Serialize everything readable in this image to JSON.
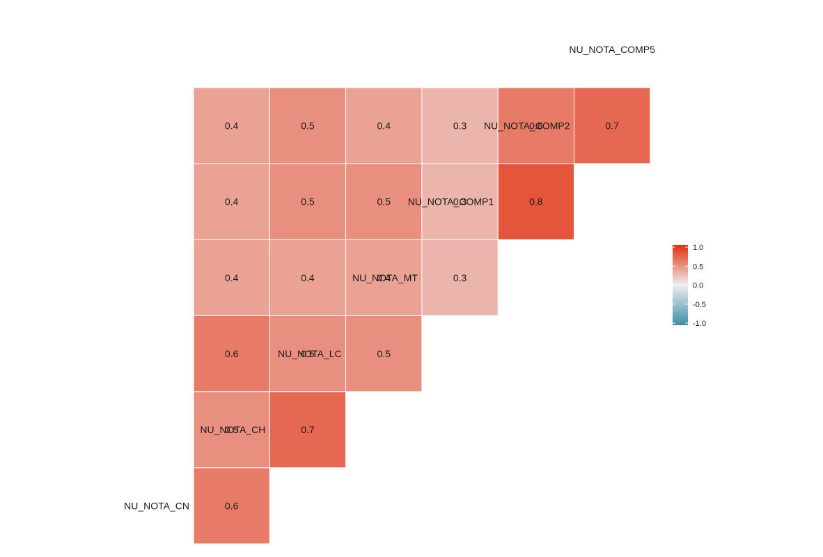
{
  "chart_data": {
    "type": "heatmap",
    "variables": [
      "NU_NOTA_CN",
      "NU_NOTA_CH",
      "NU_NOTA_LC",
      "NU_NOTA_MT",
      "NU_NOTA_COMP1",
      "NU_NOTA_COMP2",
      "NU_NOTA_COMP5"
    ],
    "cells": [
      {
        "row": "NU_NOTA_CH",
        "col": "NU_NOTA_CN",
        "value": 0.6,
        "label": "0.6"
      },
      {
        "row": "NU_NOTA_LC",
        "col": "NU_NOTA_CN",
        "value": 0.5,
        "label": "0.5"
      },
      {
        "row": "NU_NOTA_LC",
        "col": "NU_NOTA_CH",
        "value": 0.7,
        "label": "0.7"
      },
      {
        "row": "NU_NOTA_MT",
        "col": "NU_NOTA_CN",
        "value": 0.6,
        "label": "0.6"
      },
      {
        "row": "NU_NOTA_MT",
        "col": "NU_NOTA_CH",
        "value": 0.5,
        "label": "0.5"
      },
      {
        "row": "NU_NOTA_MT",
        "col": "NU_NOTA_LC",
        "value": 0.5,
        "label": "0.5"
      },
      {
        "row": "NU_NOTA_COMP1",
        "col": "NU_NOTA_CN",
        "value": 0.4,
        "label": "0.4"
      },
      {
        "row": "NU_NOTA_COMP1",
        "col": "NU_NOTA_CH",
        "value": 0.4,
        "label": "0.4"
      },
      {
        "row": "NU_NOTA_COMP1",
        "col": "NU_NOTA_LC",
        "value": 0.4,
        "label": "0.4"
      },
      {
        "row": "NU_NOTA_COMP1",
        "col": "NU_NOTA_MT",
        "value": 0.3,
        "label": "0.3"
      },
      {
        "row": "NU_NOTA_COMP2",
        "col": "NU_NOTA_CN",
        "value": 0.4,
        "label": "0.4"
      },
      {
        "row": "NU_NOTA_COMP2",
        "col": "NU_NOTA_CH",
        "value": 0.5,
        "label": "0.5"
      },
      {
        "row": "NU_NOTA_COMP2",
        "col": "NU_NOTA_LC",
        "value": 0.5,
        "label": "0.5"
      },
      {
        "row": "NU_NOTA_COMP2",
        "col": "NU_NOTA_MT",
        "value": 0.3,
        "label": "0.3"
      },
      {
        "row": "NU_NOTA_COMP2",
        "col": "NU_NOTA_COMP1",
        "value": 0.8,
        "label": "0.8"
      },
      {
        "row": "NU_NOTA_COMP5",
        "col": "NU_NOTA_CN",
        "value": 0.4,
        "label": "0.4"
      },
      {
        "row": "NU_NOTA_COMP5",
        "col": "NU_NOTA_CH",
        "value": 0.5,
        "label": "0.5"
      },
      {
        "row": "NU_NOTA_COMP5",
        "col": "NU_NOTA_LC",
        "value": 0.4,
        "label": "0.4"
      },
      {
        "row": "NU_NOTA_COMP5",
        "col": "NU_NOTA_MT",
        "value": 0.3,
        "label": "0.3"
      },
      {
        "row": "NU_NOTA_COMP5",
        "col": "NU_NOTA_COMP1",
        "value": 0.6,
        "label": "0.6"
      },
      {
        "row": "NU_NOTA_COMP5",
        "col": "NU_NOTA_COMP2",
        "value": 0.7,
        "label": "0.7"
      }
    ],
    "legend": {
      "ticks": [
        "1.0",
        "0.5",
        "0.0",
        "-0.5",
        "-1.0"
      ],
      "tick_values": [
        1.0,
        0.5,
        0.0,
        -0.5,
        -1.0
      ],
      "range": [
        -1,
        1
      ],
      "placement": "right"
    },
    "colors": {
      "low": "#3A8FA8",
      "mid": "#EEEEEE",
      "high": "#E32F0F",
      "cell_border": "#ffffff"
    },
    "title": "",
    "xlabel": "",
    "ylabel": ""
  }
}
